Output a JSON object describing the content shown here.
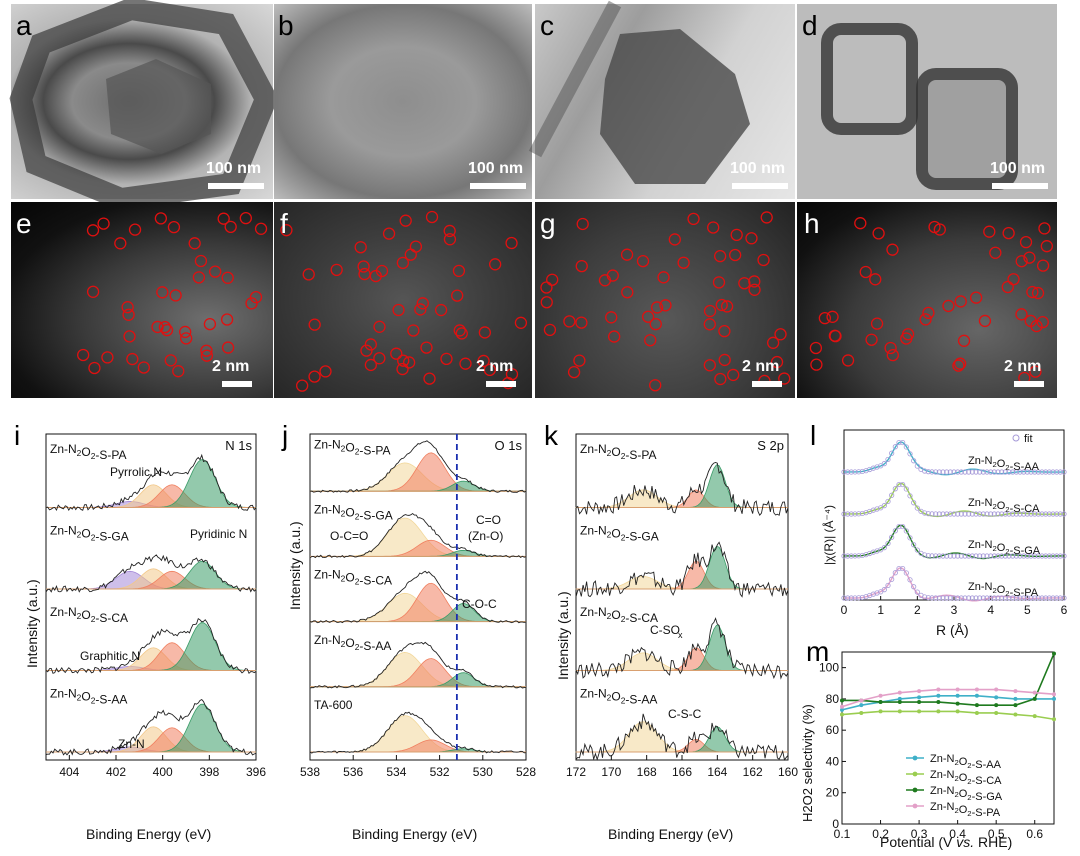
{
  "panel_labels": {
    "a": "a",
    "b": "b",
    "c": "c",
    "d": "d",
    "e": "e",
    "f": "f",
    "g": "g",
    "h": "h",
    "i": "i",
    "j": "j",
    "k": "k",
    "l": "l",
    "m": "m"
  },
  "scale_bars": {
    "tem": "100 nm",
    "haadf": "2 nm"
  },
  "panel_i": {
    "element": "N 1s",
    "samples": [
      "Zn-N2O2-S-PA",
      "Zn-N2O2-S-GA",
      "Zn-N2O2-S-CA",
      "Zn-N2O2-S-AA"
    ],
    "annotations": [
      "Pyrrolic N",
      "Pyridinic N",
      "Graphitic N",
      "Zn-N"
    ],
    "ylabel": "Intensity (a.u.)",
    "xlabel": "Binding Energy (eV)",
    "xticks": [
      "404",
      "402",
      "400",
      "398",
      "396"
    ]
  },
  "panel_j": {
    "element": "O 1s",
    "samples": [
      "Zn-N2O2-S-PA",
      "Zn-N2O2-S-GA",
      "Zn-N2O2-S-CA",
      "Zn-N2O2-S-AA",
      "TA-600"
    ],
    "annotations": [
      "O-C=O",
      "C=O",
      "(Zn-O)",
      "C-O-C"
    ],
    "ylabel": "Intensity (a.u.)",
    "xlabel": "Binding Energy (eV)",
    "xticks": [
      "538",
      "536",
      "534",
      "532",
      "530",
      "528"
    ]
  },
  "panel_k": {
    "element": "S 2p",
    "samples": [
      "Zn-N2O2-S-PA",
      "Zn-N2O2-S-GA",
      "Zn-N2O2-S-CA",
      "Zn-N2O2-S-AA"
    ],
    "annotations": [
      "C-SOx",
      "C-S-C"
    ],
    "ylabel": "Intensity (a.u.)",
    "xlabel": "Binding Energy (eV)",
    "xticks": [
      "172",
      "170",
      "168",
      "166",
      "164",
      "162",
      "160"
    ]
  },
  "panel_l": {
    "legend": "fit",
    "samples": [
      "Zn-N2O2-S-AA",
      "Zn-N2O2-S-CA",
      "Zn-N2O2-S-GA",
      "Zn-N2O2-S-PA"
    ],
    "ylabel": "|χ(R)| (Å⁻⁴)",
    "xlabel": "R (Å)",
    "xticks": [
      "0",
      "1",
      "2",
      "3",
      "4",
      "5",
      "6"
    ]
  },
  "chart_data": {
    "type": "line",
    "title": "",
    "xlabel": "Potential (V vs. RHE)",
    "ylabel": "H2O2 selectivity (%)",
    "xlim": [
      0.1,
      0.65
    ],
    "ylim": [
      0,
      110
    ],
    "xticks": [
      "0.1",
      "0.2",
      "0.3",
      "0.4",
      "0.5",
      "0.6"
    ],
    "yticks": [
      "0",
      "20",
      "40",
      "60",
      "80",
      "100"
    ],
    "x": [
      0.1,
      0.15,
      0.2,
      0.25,
      0.3,
      0.35,
      0.4,
      0.45,
      0.5,
      0.55,
      0.6,
      0.65
    ],
    "series": [
      {
        "name": "Zn-N2O2-S-AA",
        "color": "#3fb0c8",
        "values": [
          73,
          76,
          78,
          80,
          81,
          82,
          82,
          82,
          81,
          80,
          80,
          80
        ]
      },
      {
        "name": "Zn-N2O2-S-CA",
        "color": "#9acd50",
        "values": [
          70,
          71,
          72,
          72,
          72,
          72,
          72,
          71,
          71,
          70,
          69,
          67
        ]
      },
      {
        "name": "Zn-N2O2-S-GA",
        "color": "#1f7a1f",
        "values": [
          79,
          79,
          78,
          78,
          78,
          78,
          77,
          76,
          76,
          76,
          80,
          109
        ]
      },
      {
        "name": "Zn-N2O2-S-PA",
        "color": "#e3a0c8",
        "values": [
          75,
          79,
          82,
          84,
          85,
          86,
          86,
          86,
          86,
          85,
          84,
          83
        ]
      }
    ]
  },
  "panel_m": {
    "legend_entries": [
      "Zn-N2O2-S-AA",
      "Zn-N2O2-S-CA",
      "Zn-N2O2-S-GA",
      "Zn-N2O2-S-PA"
    ],
    "xlabel_prefix": "Potential (V ",
    "xlabel_vs": "vs.",
    "xlabel_suffix": " RHE)",
    "ylabel": "H2O2 selectivity (%)"
  }
}
